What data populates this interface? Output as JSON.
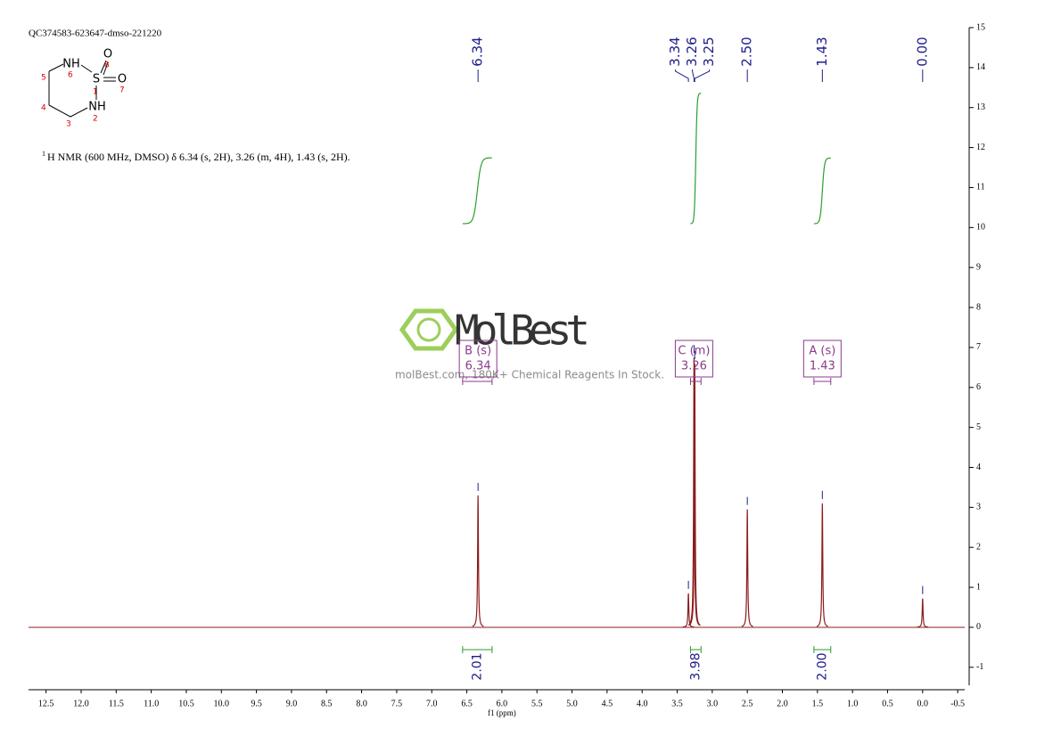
{
  "sample_id": "QC374583-623647-dmso-221220",
  "structure": {
    "atoms": [
      "NH",
      "S",
      "O",
      "O",
      "NH"
    ],
    "locants": [
      "1",
      "2",
      "3",
      "4",
      "5",
      "6",
      "7",
      "8"
    ]
  },
  "description_sup": "1",
  "description": "H NMR (600 MHz, DMSO) δ 6.34 (s, 2H), 3.26 (m, 4H), 1.43 (s, 2H).",
  "watermark": {
    "brand": "MolBest",
    "tagline": "molBest.com, 180K+ Chemical Reagents In Stock."
  },
  "chart_data": {
    "type": "nmr",
    "x_label": "f1 (ppm)",
    "xlim": [
      12.75,
      -0.6
    ],
    "xticks": [
      12.5,
      {
        "value": 12,
        "label": "12.0"
      },
      11.5,
      {
        "value": 11,
        "label": "11.0"
      },
      10.5,
      {
        "value": 10,
        "label": "10.0"
      },
      9.5,
      {
        "value": 9,
        "label": "9.0"
      },
      8.5,
      {
        "value": 8,
        "label": "8.0"
      },
      7.5,
      {
        "value": 7,
        "label": "7.0"
      },
      6.5,
      {
        "value": 6,
        "label": "6.0"
      },
      5.5,
      {
        "value": 5,
        "label": "5.0"
      },
      4.5,
      {
        "value": 4,
        "label": "4.0"
      },
      3.5,
      {
        "value": 3,
        "label": "3.0"
      },
      2.5,
      {
        "value": 2,
        "label": "2.0"
      },
      1.5,
      {
        "value": 1,
        "label": "1.0"
      },
      0.5,
      {
        "value": 0,
        "label": "0.0"
      },
      -0.5
    ],
    "ylim": [
      -1.45,
      15
    ],
    "yticks": [
      -1,
      0,
      1,
      2,
      3,
      4,
      5,
      6,
      7,
      8,
      9,
      10,
      11,
      12,
      13,
      14,
      15
    ],
    "spectrum_color": "#8b1c1c",
    "peaks": {
      "ppm": [
        6.34,
        3.34,
        3.26,
        3.25,
        2.5,
        1.43,
        0.0
      ],
      "height": [
        3.3,
        0.85,
        6.75,
        6.6,
        2.95,
        3.1,
        0.72
      ]
    },
    "peak_labels": [
      6.34,
      3.34,
      3.26,
      3.25,
      {
        "value": 2.5,
        "label": "2.50"
      },
      1.43,
      {
        "value": 0,
        "label": "0.00"
      }
    ],
    "peak_label_color": "#1c1c8c",
    "multiplets": [
      {
        "name": "B (s)",
        "shift": 6.34,
        "range": [
          6.56,
          6.14
        ]
      },
      {
        "name": "C (m)",
        "shift": 3.26,
        "range": [
          3.31,
          3.16
        ]
      },
      {
        "name": "A (s)",
        "shift": 1.43,
        "range": [
          1.55,
          1.31
        ]
      }
    ],
    "multiplet_color": "#8b3a8b",
    "integrals": [
      {
        "value": 2.01,
        "range": [
          6.56,
          6.14
        ]
      },
      {
        "value": 3.98,
        "range": [
          3.31,
          3.16
        ]
      },
      {
        "value": 2.0,
        "label": "2.00",
        "range": [
          1.55,
          1.31
        ]
      }
    ],
    "integral_color": "#2e9e2e"
  }
}
